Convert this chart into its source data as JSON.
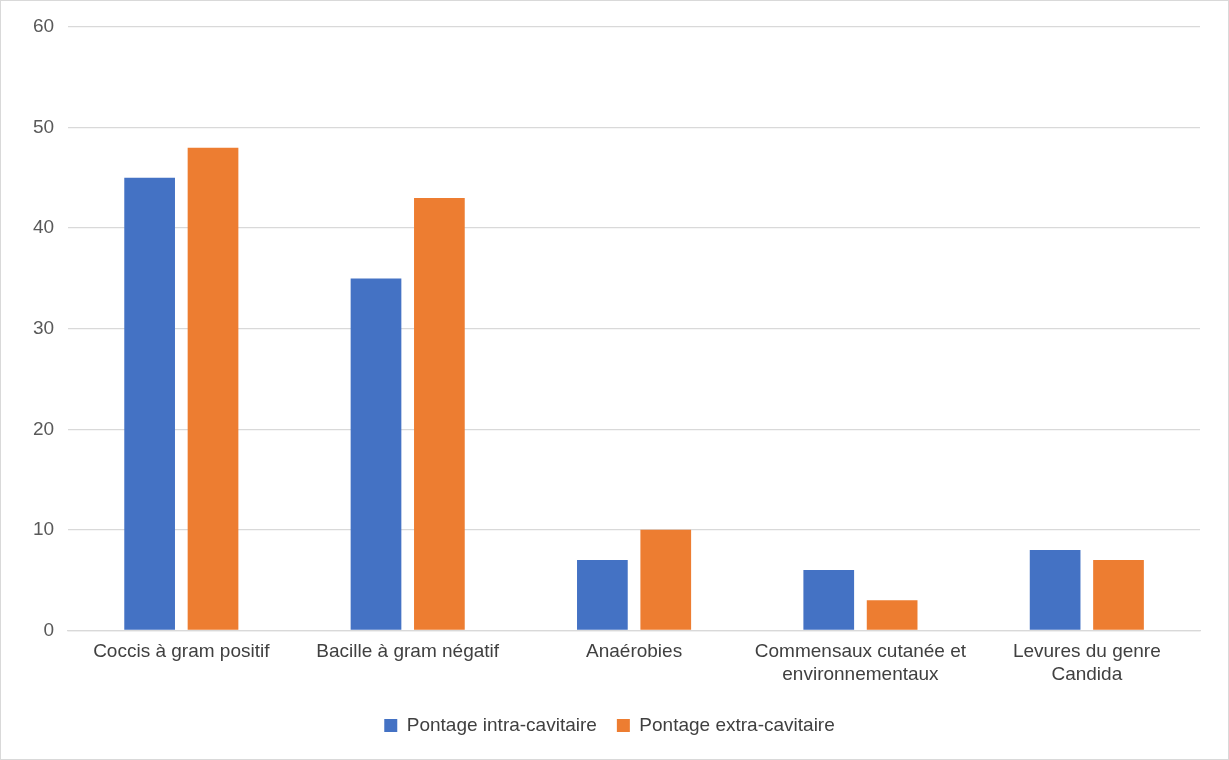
{
  "chart_data": {
    "type": "bar",
    "categories": [
      "Coccis à gram positif",
      "Bacille à gram négatif",
      "Anaérobies",
      "Commensaux cutanée et environnementaux",
      "Levures du genre Candida"
    ],
    "series": [
      {
        "name": "Pontage intra-cavitaire",
        "color": "#4472c4",
        "values": [
          45,
          35,
          7,
          6,
          8
        ]
      },
      {
        "name": "Pontage extra-cavitaire",
        "color": "#ed7d31",
        "values": [
          48,
          43,
          10,
          3,
          7
        ]
      }
    ],
    "ylim": [
      0,
      60
    ],
    "yticks": [
      0,
      10,
      20,
      30,
      40,
      50,
      60
    ],
    "grid": "y",
    "legend": "bottom"
  }
}
